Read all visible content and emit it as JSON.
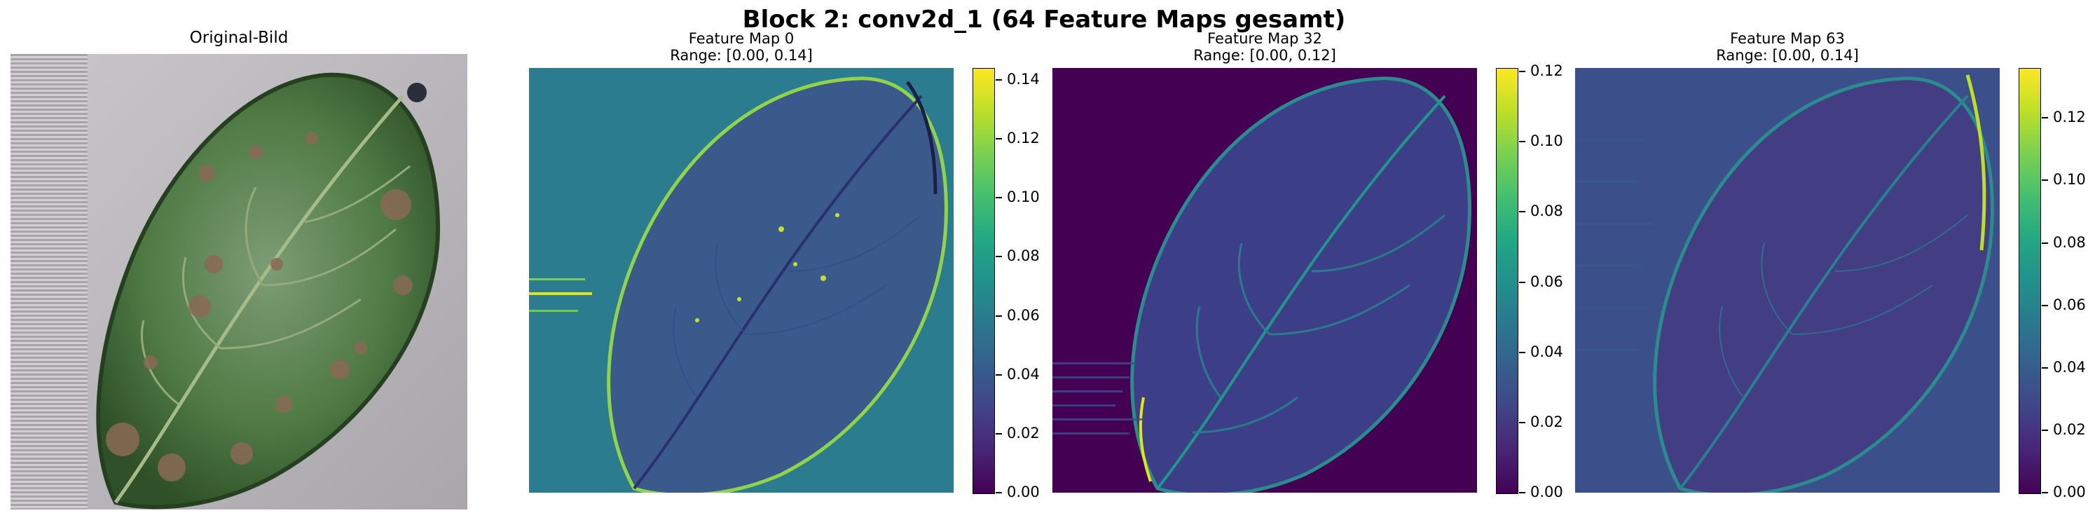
{
  "figure": {
    "suptitle": "Block 2: conv2d_1 (64 Feature Maps gesamt)"
  },
  "original": {
    "title": "Original-Bild"
  },
  "feature_maps": [
    {
      "title": "Feature Map 0",
      "range": "Range: [0.00, 0.14]",
      "ticks": [
        "0.00",
        "0.02",
        "0.04",
        "0.06",
        "0.08",
        "0.10",
        "0.12",
        "0.14"
      ],
      "max": 0.144,
      "background_color": "#2b7c8e"
    },
    {
      "title": "Feature Map 32",
      "range": "Range: [0.00, 0.12]",
      "ticks": [
        "0.00",
        "0.02",
        "0.04",
        "0.06",
        "0.08",
        "0.10",
        "0.12"
      ],
      "max": 0.121,
      "background_color": "#440154"
    },
    {
      "title": "Feature Map 63",
      "range": "Range: [0.00, 0.14]",
      "ticks": [
        "0.00",
        "0.02",
        "0.04",
        "0.06",
        "0.08",
        "0.10",
        "0.12"
      ],
      "max": 0.136,
      "background_color": "#3b4f8a"
    }
  ],
  "colormap": "viridis"
}
